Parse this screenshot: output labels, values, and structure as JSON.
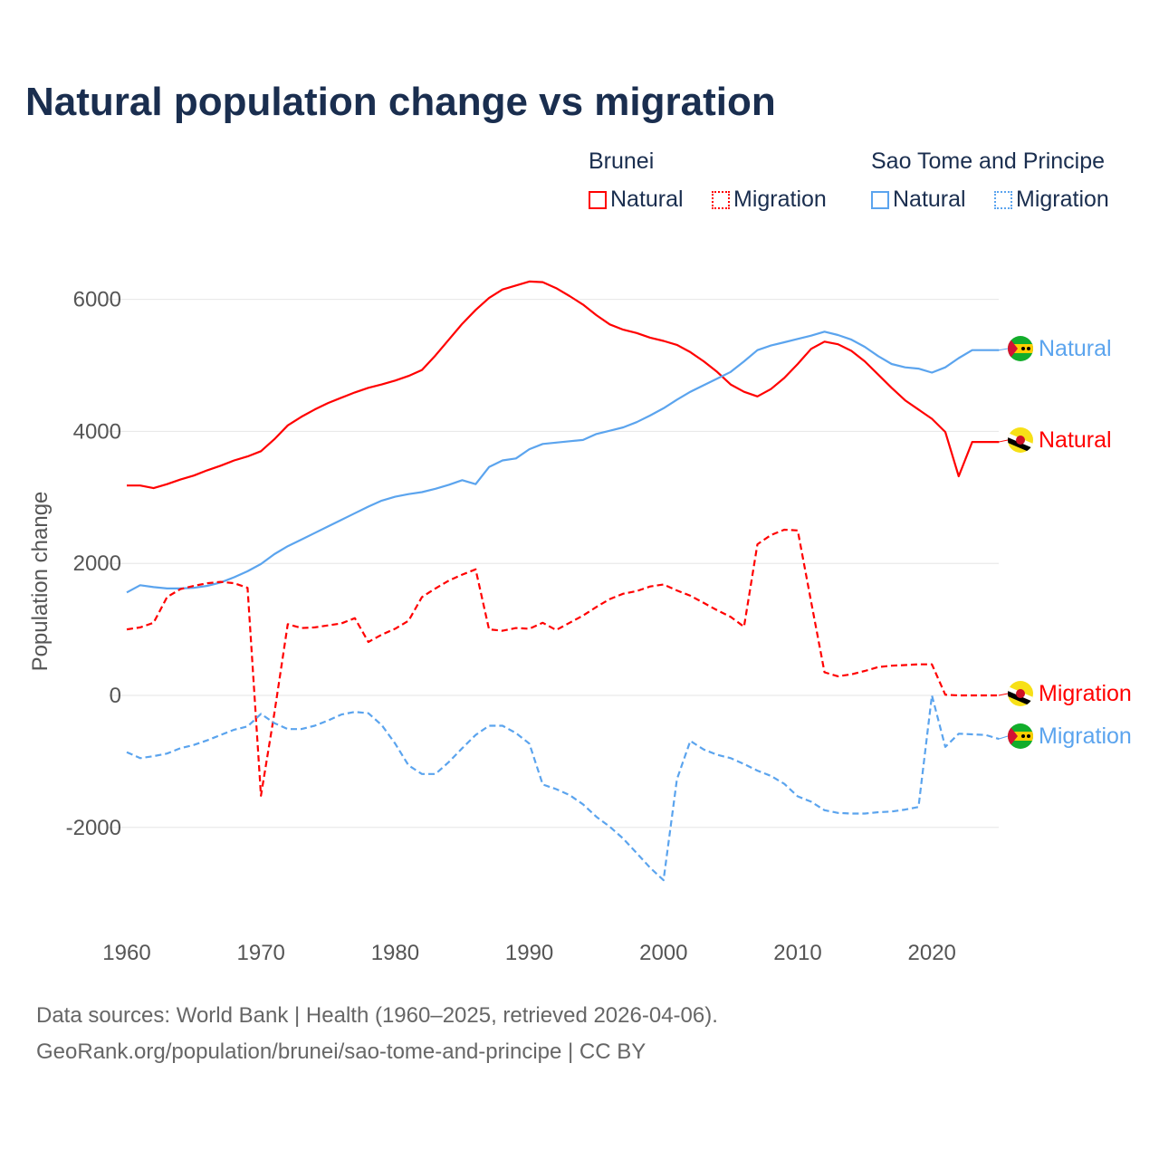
{
  "title": "Natural population change vs migration",
  "legend": {
    "groups": [
      {
        "name": "Brunei",
        "color": "#ff0000",
        "items": [
          "Natural",
          "Migration"
        ]
      },
      {
        "name": "Sao Tome and Principe",
        "color": "#5ba4ee",
        "items": [
          "Natural",
          "Migration"
        ]
      }
    ]
  },
  "footer": {
    "line1": "Data sources: World Bank | Health (1960–2025, retrieved 2026-04-06).",
    "line2": "GeoRank.org/population/brunei/sao-tome-and-principe | CC BY"
  },
  "chart_data": {
    "type": "line",
    "title": "Natural population change vs migration",
    "xlabel": "",
    "ylabel": "Population change",
    "xlim": [
      1960,
      2025
    ],
    "ylim": [
      -3000,
      6500
    ],
    "xticks": [
      1960,
      1970,
      1980,
      1990,
      2000,
      2010,
      2020
    ],
    "yticks": [
      -2000,
      0,
      2000,
      4000,
      6000
    ],
    "ytick_labels": [
      "-2000",
      "0",
      "2000",
      "4000",
      "6000"
    ],
    "x_start": 1960,
    "series": [
      {
        "name": "Brunei Natural",
        "label": "Natural",
        "country": "Brunei",
        "color": "#ff0000",
        "dash": false,
        "values": [
          3180,
          3180,
          3140,
          3200,
          3270,
          3330,
          3410,
          3480,
          3560,
          3620,
          3700,
          3880,
          4090,
          4220,
          4330,
          4430,
          4510,
          4590,
          4660,
          4710,
          4770,
          4840,
          4930,
          5150,
          5390,
          5630,
          5840,
          6020,
          6150,
          6210,
          6270,
          6260,
          6170,
          6050,
          5920,
          5760,
          5620,
          5540,
          5490,
          5420,
          5370,
          5310,
          5200,
          5060,
          4900,
          4710,
          4600,
          4530,
          4640,
          4810,
          5020,
          5250,
          5360,
          5320,
          5220,
          5060,
          4860,
          4660,
          4470,
          4330,
          4190,
          3990,
          3320,
          3840,
          3840,
          3840
        ]
      },
      {
        "name": "Sao Tome and Principe Natural",
        "label": "Natural",
        "country": "Sao Tome and Principe",
        "color": "#5ba4ee",
        "dash": false,
        "values": [
          1560,
          1670,
          1640,
          1620,
          1620,
          1630,
          1660,
          1710,
          1790,
          1880,
          1990,
          2140,
          2260,
          2360,
          2460,
          2560,
          2660,
          2760,
          2860,
          2950,
          3010,
          3050,
          3080,
          3130,
          3190,
          3260,
          3200,
          3460,
          3560,
          3590,
          3730,
          3810,
          3830,
          3850,
          3870,
          3960,
          4010,
          4060,
          4140,
          4240,
          4350,
          4480,
          4600,
          4700,
          4800,
          4900,
          5060,
          5230,
          5300,
          5350,
          5400,
          5450,
          5510,
          5460,
          5390,
          5280,
          5140,
          5020,
          4970,
          4950,
          4890,
          4970,
          5110,
          5230,
          5230,
          5230
        ]
      },
      {
        "name": "Brunei Migration",
        "label": "Migration",
        "country": "Brunei",
        "color": "#ff0000",
        "dash": true,
        "values": [
          1000,
          1030,
          1100,
          1490,
          1610,
          1660,
          1700,
          1720,
          1700,
          1630,
          -1520,
          -270,
          1080,
          1020,
          1030,
          1060,
          1090,
          1170,
          810,
          920,
          1010,
          1130,
          1490,
          1620,
          1740,
          1830,
          1910,
          1000,
          980,
          1020,
          1010,
          1100,
          990,
          1100,
          1210,
          1340,
          1460,
          1540,
          1580,
          1650,
          1680,
          1590,
          1510,
          1400,
          1290,
          1190,
          1040,
          2290,
          2430,
          2510,
          2500,
          1420,
          350,
          290,
          320,
          370,
          430,
          450,
          460,
          470,
          470,
          10,
          0,
          0,
          0,
          0
        ]
      },
      {
        "name": "Sao Tome and Principe Migration",
        "label": "Migration",
        "country": "Sao Tome and Principe",
        "color": "#5ba4ee",
        "dash": true,
        "values": [
          -860,
          -950,
          -920,
          -880,
          -800,
          -750,
          -680,
          -600,
          -520,
          -470,
          -280,
          -420,
          -510,
          -510,
          -460,
          -380,
          -290,
          -250,
          -270,
          -450,
          -730,
          -1060,
          -1190,
          -1190,
          -1010,
          -800,
          -600,
          -460,
          -460,
          -570,
          -730,
          -1350,
          -1420,
          -1510,
          -1650,
          -1840,
          -1990,
          -2170,
          -2390,
          -2610,
          -2800,
          -1270,
          -690,
          -820,
          -900,
          -950,
          -1040,
          -1140,
          -1220,
          -1340,
          -1530,
          -1610,
          -1740,
          -1780,
          -1790,
          -1790,
          -1770,
          -1760,
          -1730,
          -1690,
          0,
          -780,
          -580,
          -590,
          -600,
          -660
        ]
      }
    ]
  }
}
